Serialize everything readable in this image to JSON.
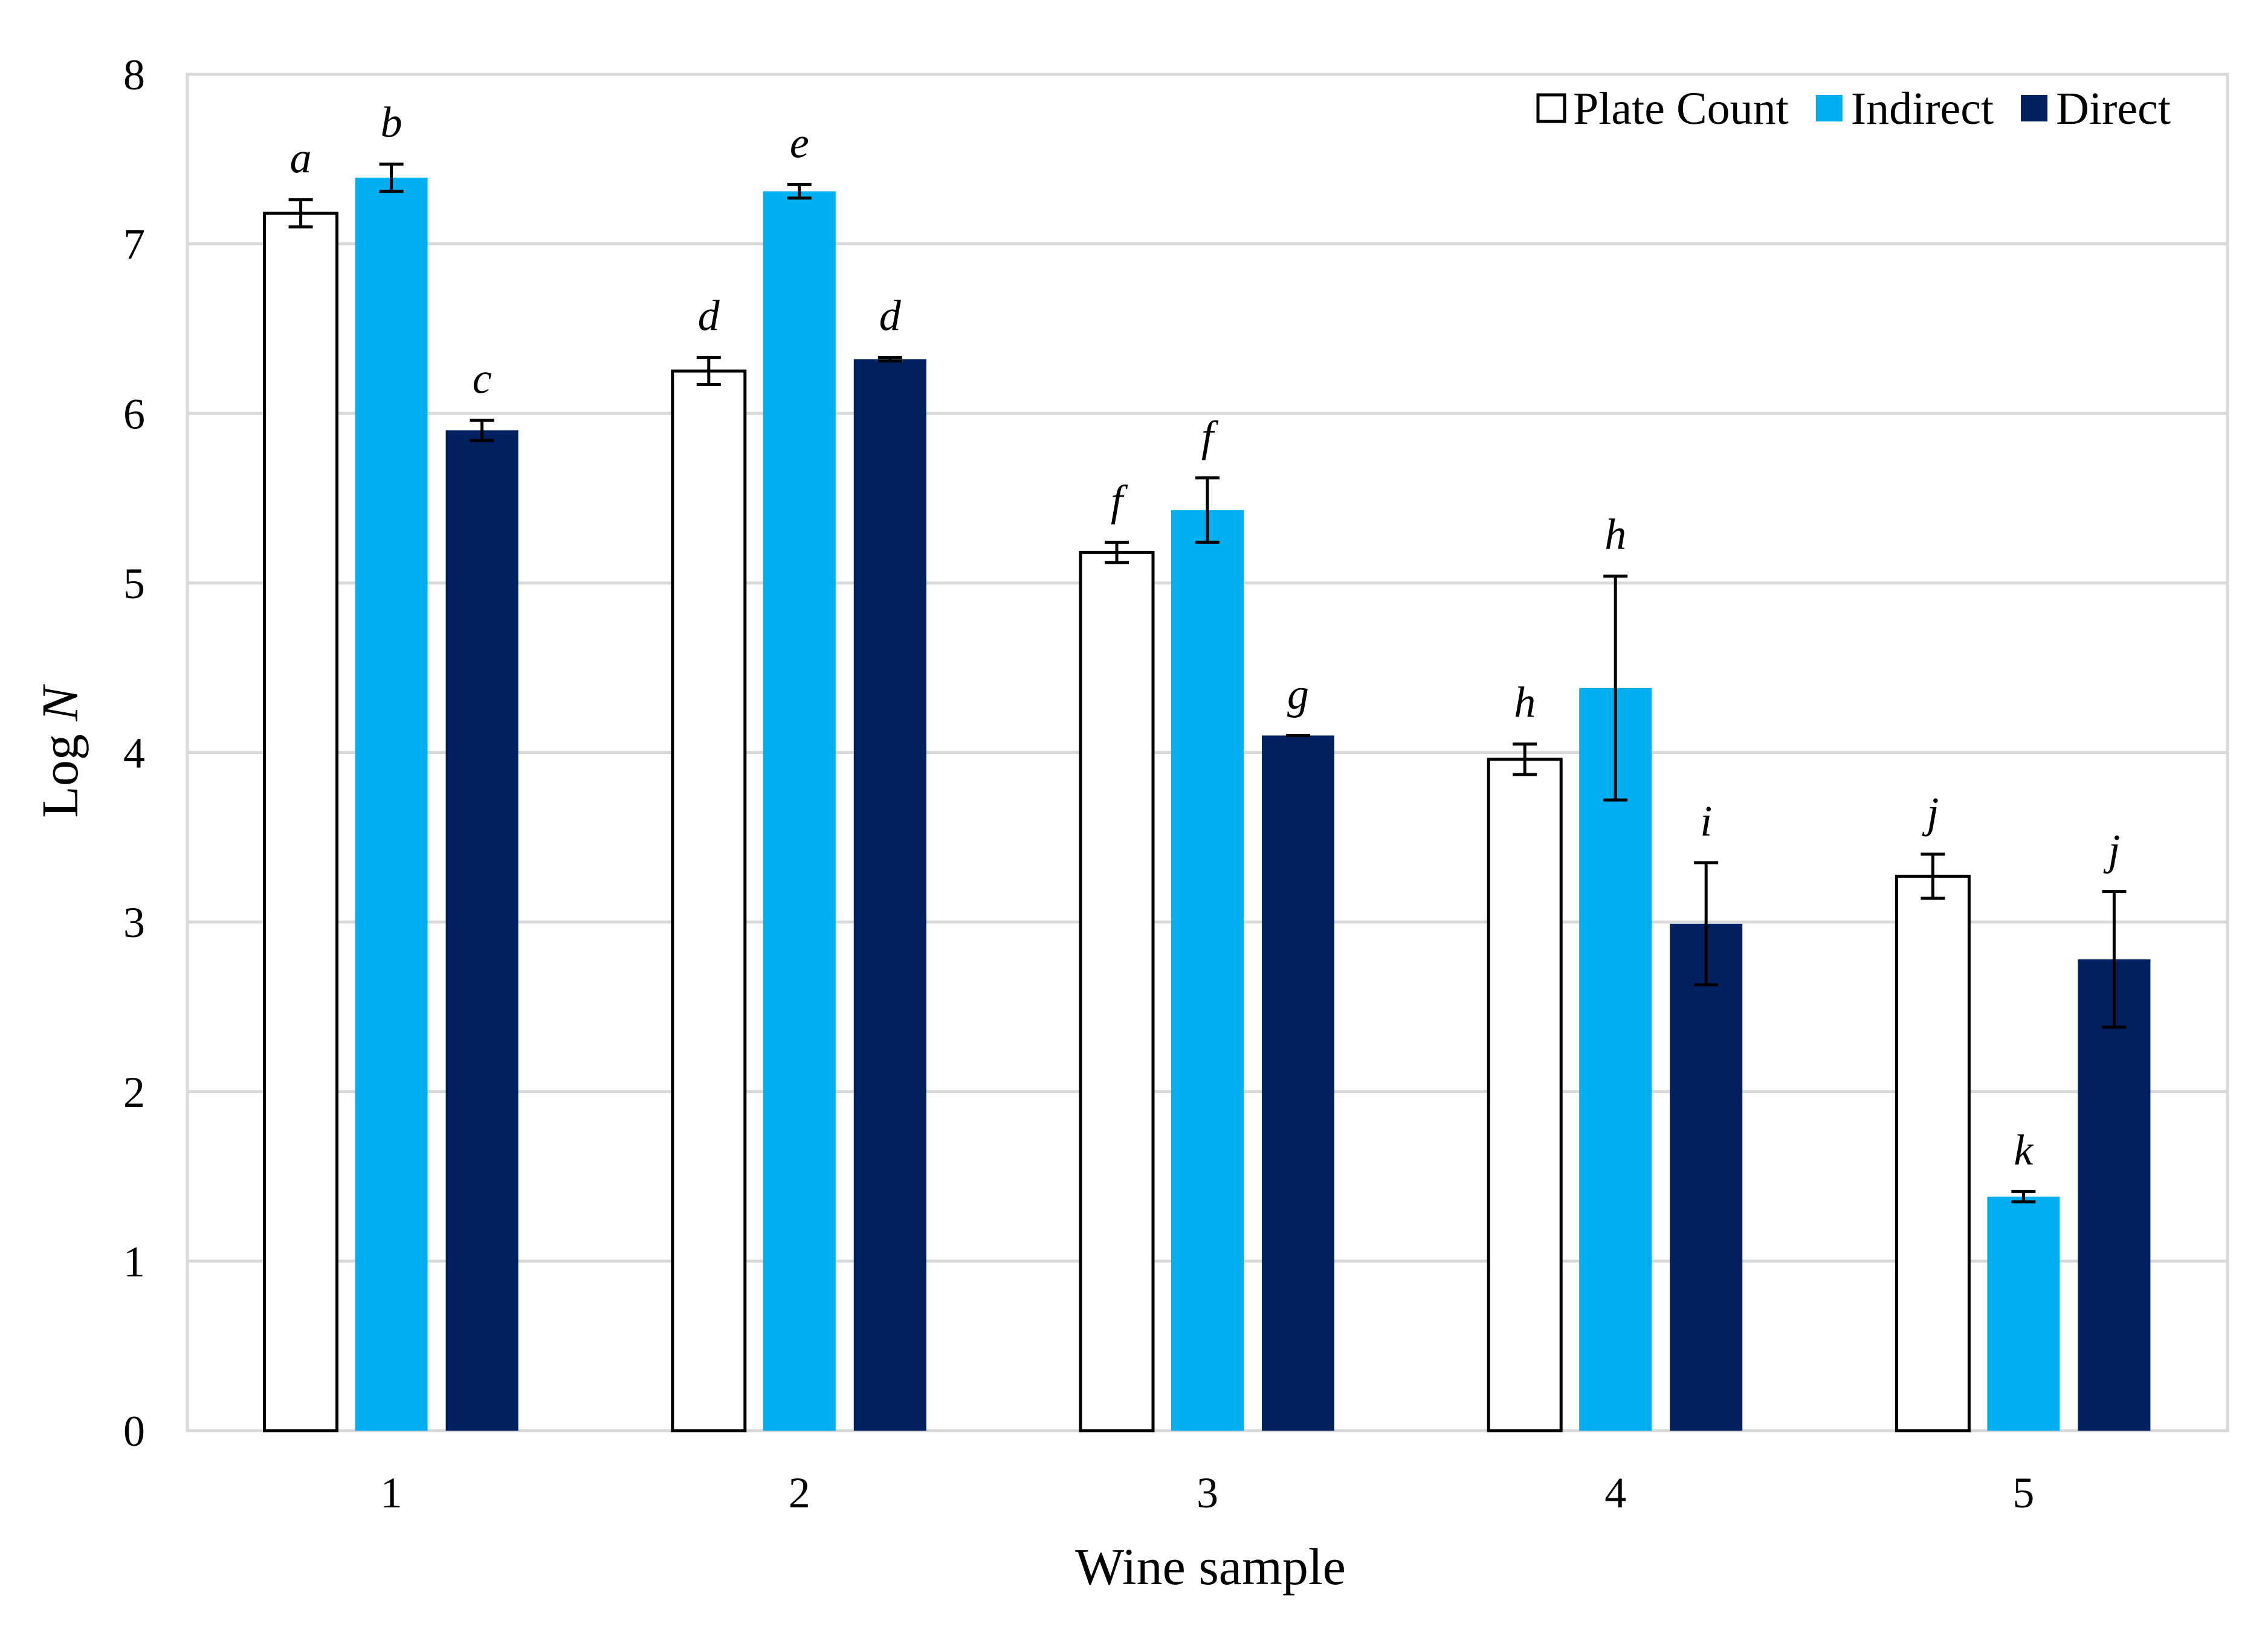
{
  "chart_data": {
    "type": "bar",
    "title": "",
    "xlabel": "Wine sample",
    "ylabel": {
      "prefix": "Log ",
      "italic": "N"
    },
    "ylim": [
      0,
      8
    ],
    "yticks": [
      "0",
      "1",
      "2",
      "3",
      "4",
      "5",
      "6",
      "7",
      "8"
    ],
    "categories": [
      "1",
      "2",
      "3",
      "4",
      "5"
    ],
    "grid": true,
    "legend_position": "top-right",
    "series": [
      {
        "name": "Plate Count",
        "fill": "#ffffff",
        "stroke": "#000000",
        "values": [
          7.18,
          6.25,
          5.18,
          3.96,
          3.27
        ],
        "errors": [
          0.08,
          0.08,
          0.06,
          0.09,
          0.13
        ],
        "labels": [
          "a",
          "d",
          "f",
          "h",
          "j"
        ]
      },
      {
        "name": "Indirect",
        "fill": "#00b0f0",
        "stroke": "#00b0f0",
        "values": [
          7.39,
          7.31,
          5.43,
          4.38,
          1.38
        ],
        "errors": [
          0.08,
          0.04,
          0.19,
          0.66,
          0.03
        ],
        "labels": [
          "b",
          "e",
          "f",
          "h",
          "k"
        ]
      },
      {
        "name": "Direct",
        "fill": "#002060",
        "stroke": "#002060",
        "values": [
          5.9,
          6.32,
          4.1,
          2.99,
          2.78
        ],
        "errors": [
          0.06,
          0.01,
          0.0,
          0.36,
          0.4
        ],
        "labels": [
          "c",
          "d",
          "g",
          "i",
          "j"
        ]
      }
    ]
  }
}
